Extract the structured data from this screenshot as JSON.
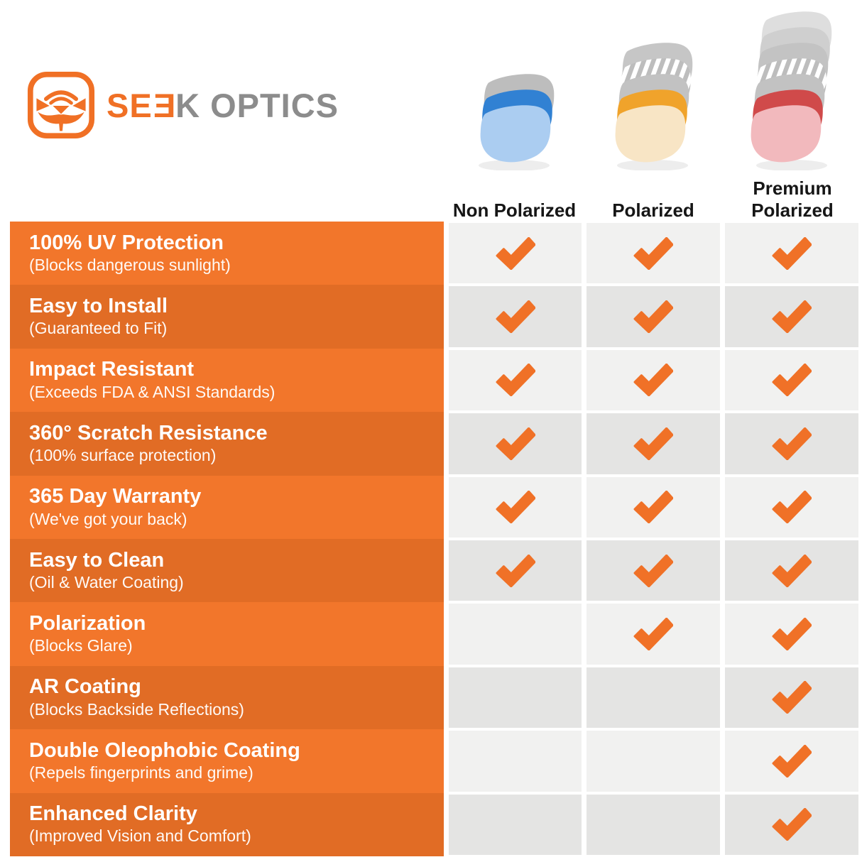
{
  "brand": {
    "logo_text_orange": "SE",
    "logo_text_flipped": "E",
    "logo_text_gray": "K OPTICS"
  },
  "header": {
    "columns": [
      {
        "label": "Non Polarized",
        "lens_icon": "non-polarized-lens-stack",
        "layers": [
          "#BDBDBD",
          "#3181D3",
          "#ABCDF1"
        ]
      },
      {
        "label": "Polarized",
        "lens_icon": "polarized-lens-stack",
        "layers": [
          "#C6C6C6",
          "stripes",
          "#C2C2C2",
          "#F0A32B",
          "#F8E5C5"
        ]
      },
      {
        "label": "Premium Polarized",
        "lens_icon": "premium-polarized-lens-stack",
        "layers": [
          "#DEDEDE",
          "#CFCFCF",
          "#C3C3C3",
          "stripes",
          "#C2C2C2",
          "#D04A4A",
          "#F2B9BD"
        ]
      }
    ]
  },
  "chart_data": {
    "type": "table",
    "title": "Seek Optics Lens Feature Comparison",
    "columns": [
      "Non Polarized",
      "Polarized",
      "Premium Polarized"
    ],
    "rows": [
      {
        "feature": "100% UV Protection",
        "detail": "(Blocks dangerous sunlight)",
        "values": [
          true,
          true,
          true
        ]
      },
      {
        "feature": "Easy to Install",
        "detail": "(Guaranteed to Fit)",
        "values": [
          true,
          true,
          true
        ]
      },
      {
        "feature": "Impact Resistant",
        "detail": "(Exceeds FDA & ANSI Standards)",
        "values": [
          true,
          true,
          true
        ]
      },
      {
        "feature": "360° Scratch Resistance",
        "detail": "(100% surface protection)",
        "values": [
          true,
          true,
          true
        ]
      },
      {
        "feature": "365 Day Warranty",
        "detail": "(We've got your back)",
        "values": [
          true,
          true,
          true
        ]
      },
      {
        "feature": "Easy to Clean",
        "detail": "(Oil & Water Coating)",
        "values": [
          true,
          true,
          true
        ]
      },
      {
        "feature": "Polarization",
        "detail": "(Blocks Glare)",
        "values": [
          false,
          true,
          true
        ]
      },
      {
        "feature": "AR Coating",
        "detail": "(Blocks Backside Reflections)",
        "values": [
          false,
          false,
          true
        ]
      },
      {
        "feature": "Double Oleophobic Coating",
        "detail": "(Repels fingerprints and grime)",
        "values": [
          false,
          false,
          true
        ]
      },
      {
        "feature": "Enhanced Clarity",
        "detail": "(Improved Vision and Comfort)",
        "values": [
          false,
          false,
          true
        ]
      }
    ]
  },
  "colors": {
    "row_orange_light": "#F2762B",
    "row_orange_dark": "#E16C25",
    "check": "#F07127",
    "cell_gray_light": "#F1F1F0",
    "cell_gray_dark": "#E4E4E3",
    "brand_orange": "#F07025",
    "brand_gray": "#8C8C8C"
  }
}
